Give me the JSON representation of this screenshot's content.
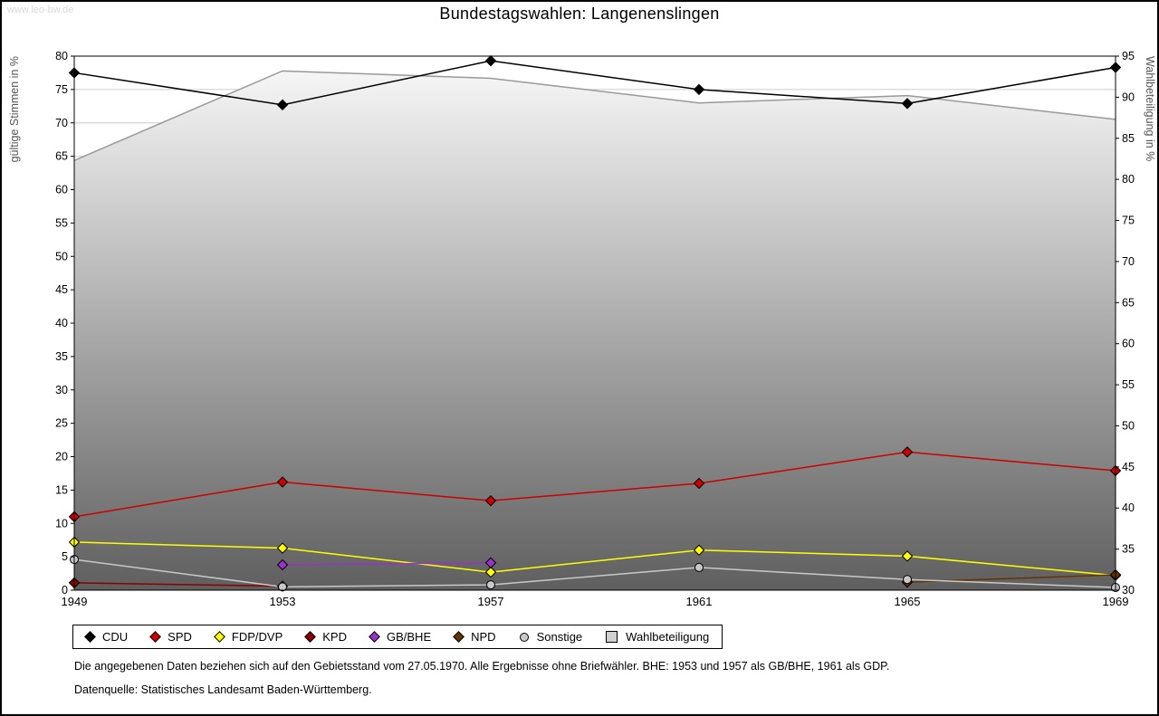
{
  "watermark": "www.leo-bw.de",
  "title": "Bundestagswahlen: Langenenslingen",
  "footnotes": [
    "Die angegebenen Daten beziehen sich auf den Gebietsstand vom 27.05.1970. Alle Ergebnisse ohne Briefwähler. BHE: 1953 und 1957 als GB/BHE, 1961 als GDP.",
    "Datenquelle: Statistisches Landesamt Baden-Württemberg."
  ],
  "chart_data": {
    "type": "line",
    "title": "Bundestagswahlen: Langenenslingen",
    "x": [
      1949,
      1953,
      1957,
      1961,
      1965,
      1969
    ],
    "left_axis": {
      "label": "gültige Stimmen in %",
      "min": 0,
      "max": 80,
      "step": 5
    },
    "right_axis": {
      "label": "Wahlbeteiligung in %",
      "min": 30,
      "max": 95,
      "step": 5
    },
    "grid": true,
    "legend_position": "bottom",
    "series": [
      {
        "name": "CDU",
        "color": "#000000",
        "marker": "diamond",
        "axis": "left",
        "values": [
          77.5,
          72.7,
          79.3,
          75.0,
          72.9,
          78.3
        ]
      },
      {
        "name": "SPD",
        "color": "#cc0000",
        "marker": "diamond",
        "axis": "left",
        "values": [
          11.0,
          16.2,
          13.4,
          16.0,
          20.7,
          17.9
        ]
      },
      {
        "name": "FDP/DVP",
        "color": "#ffff00",
        "marker": "diamond",
        "axis": "left",
        "values": [
          7.2,
          6.3,
          2.7,
          6.0,
          5.1,
          2.2
        ]
      },
      {
        "name": "KPD",
        "color": "#8b0000",
        "marker": "diamond",
        "axis": "left",
        "values": [
          1.1,
          0.6,
          null,
          null,
          null,
          null
        ]
      },
      {
        "name": "GB/BHE",
        "color": "#9933cc",
        "marker": "diamond",
        "axis": "left",
        "values": [
          null,
          3.8,
          4.1,
          null,
          null,
          null
        ]
      },
      {
        "name": "NPD",
        "color": "#663300",
        "marker": "diamond",
        "axis": "left",
        "values": [
          null,
          null,
          null,
          null,
          1.2,
          2.3
        ]
      },
      {
        "name": "Sonstige",
        "color": "#c8c8c8",
        "marker": "circle",
        "axis": "left",
        "values": [
          4.6,
          0.5,
          0.8,
          3.4,
          1.6,
          0.4
        ]
      }
    ],
    "turnout": {
      "name": "Wahlbeteiligung",
      "color": "#999999",
      "marker": "square",
      "axis": "right",
      "values": [
        82.3,
        93.2,
        92.3,
        89.3,
        90.2,
        87.3
      ],
      "fill_top": "#fafafa",
      "fill_bottom": "#5f5f5f"
    }
  }
}
